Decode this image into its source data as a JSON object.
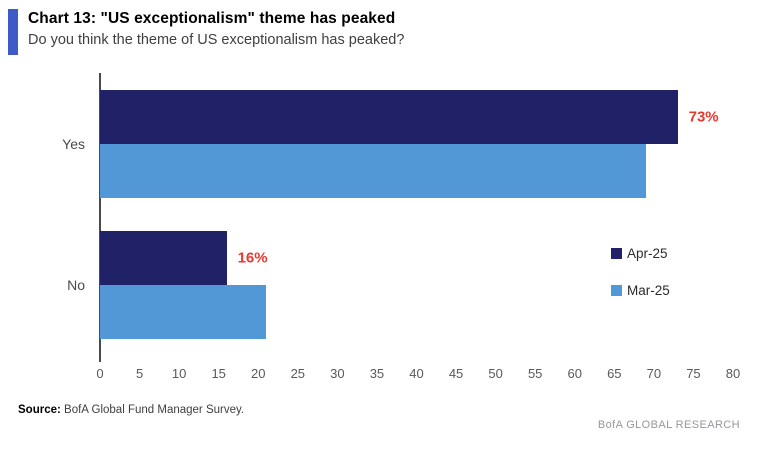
{
  "header": {
    "title": "Chart 13: \"US exceptionalism\" theme has peaked",
    "subtitle": "Do you think the theme of US exceptionalism has peaked?"
  },
  "chart_data": {
    "type": "bar",
    "orientation": "horizontal",
    "title": "Chart 13: \"US exceptionalism\" theme has peaked",
    "subtitle": "Do you think the theme of US exceptionalism has peaked?",
    "categories": [
      "Yes",
      "No"
    ],
    "series": [
      {
        "name": "Apr-25",
        "color": "#212168",
        "values": [
          73,
          16
        ]
      },
      {
        "name": "Mar-25",
        "color": "#5298d6",
        "values": [
          69,
          21
        ]
      }
    ],
    "value_labels": [
      {
        "series_index": 0,
        "category_index": 0,
        "text": "73%"
      },
      {
        "series_index": 0,
        "category_index": 1,
        "text": "16%"
      }
    ],
    "value_label_color": "#e8382d",
    "xlim": [
      0,
      80
    ],
    "x_ticks": [
      "0",
      "5",
      "10",
      "15",
      "20",
      "25",
      "30",
      "35",
      "40",
      "45",
      "50",
      "55",
      "60",
      "65",
      "70",
      "75",
      "80"
    ],
    "grid": false,
    "legend_position": "middle-right"
  },
  "footer": {
    "source_label": "Source:",
    "source_text": " BofA Global Fund Manager Survey.",
    "brand": "BofA GLOBAL RESEARCH"
  },
  "colors": {
    "accent_bar": "#3e5ac6",
    "axis_line": "#4a4a4a",
    "tick_label": "#58595b",
    "category_label": "#4a4a4a",
    "brand_text": "#95979a"
  }
}
